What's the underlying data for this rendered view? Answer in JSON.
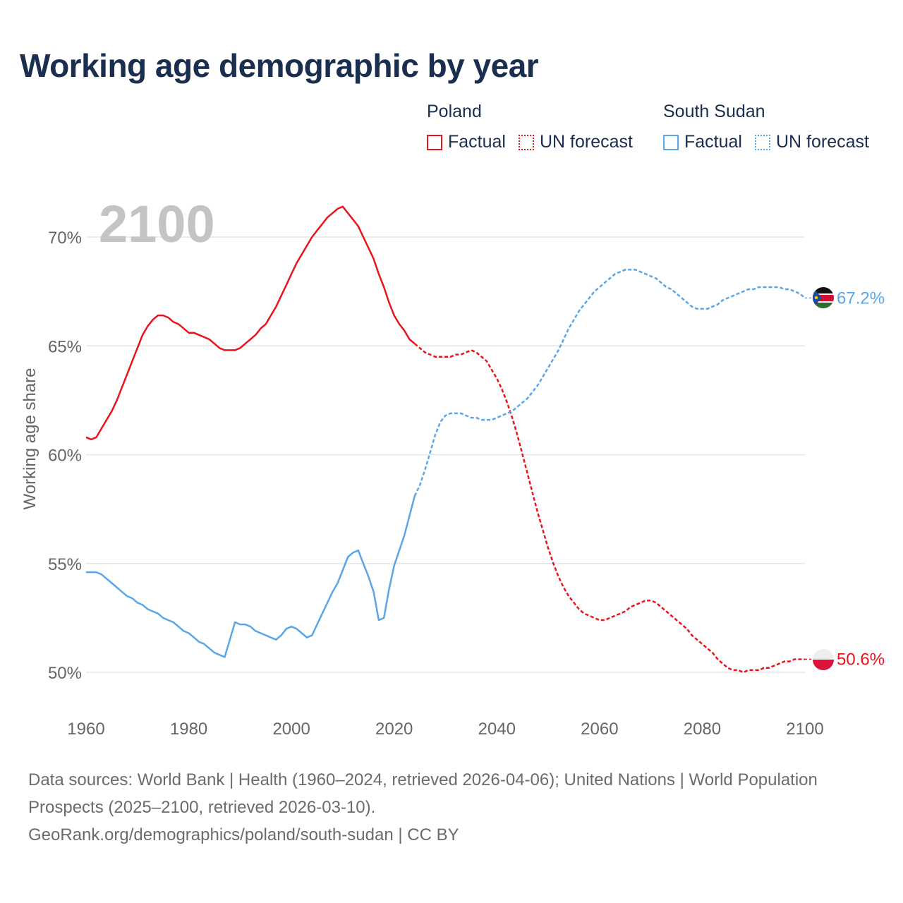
{
  "title": "Working age demographic by year",
  "legend": {
    "poland": {
      "country": "Poland",
      "factual": "Factual",
      "forecast": "UN forecast"
    },
    "south_sudan": {
      "country": "South Sudan",
      "factual": "Factual",
      "forecast": "UN forecast"
    }
  },
  "colors": {
    "poland": "#e8141c",
    "south_sudan": "#5aa6e6",
    "grid": "#e6e6e6",
    "axis_text": "#666666",
    "year_watermark": "#c4c4c4"
  },
  "footer": {
    "sources": "Data sources: World Bank | Health (1960–2024, retrieved 2026-04-06); United Nations | World Population Prospects (2025–2100, retrieved 2026-03-10).",
    "credit": "GeoRank.org/demographics/poland/south-sudan | CC BY"
  },
  "chart_data": {
    "type": "line",
    "title": "Working age demographic by year",
    "year_label": "2100",
    "ylabel": "Working age share",
    "xlabel": "",
    "xlim": [
      1960,
      2100
    ],
    "ylim": [
      48.5,
      72.5
    ],
    "x_ticks": [
      1960,
      1980,
      2000,
      2020,
      2040,
      2060,
      2080,
      2100
    ],
    "x_tick_labels": [
      "1960",
      "1980",
      "2000",
      "2020",
      "2040",
      "2060",
      "2080",
      "2100"
    ],
    "y_ticks": [
      50,
      55,
      60,
      65,
      70
    ],
    "y_tick_labels": [
      "50%",
      "55%",
      "60%",
      "65%",
      "70%"
    ],
    "series": [
      {
        "name": "Poland",
        "end_label": "50.6%",
        "factual": [
          [
            1960,
            60.8
          ],
          [
            1961,
            60.7
          ],
          [
            1962,
            60.8
          ],
          [
            1963,
            61.2
          ],
          [
            1964,
            61.6
          ],
          [
            1965,
            62.0
          ],
          [
            1966,
            62.5
          ],
          [
            1967,
            63.1
          ],
          [
            1968,
            63.7
          ],
          [
            1969,
            64.3
          ],
          [
            1970,
            64.9
          ],
          [
            1971,
            65.5
          ],
          [
            1972,
            65.9
          ],
          [
            1973,
            66.2
          ],
          [
            1974,
            66.4
          ],
          [
            1975,
            66.4
          ],
          [
            1976,
            66.3
          ],
          [
            1977,
            66.1
          ],
          [
            1978,
            66.0
          ],
          [
            1979,
            65.8
          ],
          [
            1980,
            65.6
          ],
          [
            1981,
            65.6
          ],
          [
            1982,
            65.5
          ],
          [
            1983,
            65.4
          ],
          [
            1984,
            65.3
          ],
          [
            1985,
            65.1
          ],
          [
            1986,
            64.9
          ],
          [
            1987,
            64.8
          ],
          [
            1988,
            64.8
          ],
          [
            1989,
            64.8
          ],
          [
            1990,
            64.9
          ],
          [
            1991,
            65.1
          ],
          [
            1992,
            65.3
          ],
          [
            1993,
            65.5
          ],
          [
            1994,
            65.8
          ],
          [
            1995,
            66.0
          ],
          [
            1996,
            66.4
          ],
          [
            1997,
            66.8
          ],
          [
            1998,
            67.3
          ],
          [
            1999,
            67.8
          ],
          [
            2000,
            68.3
          ],
          [
            2001,
            68.8
          ],
          [
            2002,
            69.2
          ],
          [
            2003,
            69.6
          ],
          [
            2004,
            70.0
          ],
          [
            2005,
            70.3
          ],
          [
            2006,
            70.6
          ],
          [
            2007,
            70.9
          ],
          [
            2008,
            71.1
          ],
          [
            2009,
            71.3
          ],
          [
            2010,
            71.4
          ],
          [
            2011,
            71.1
          ],
          [
            2012,
            70.8
          ],
          [
            2013,
            70.5
          ],
          [
            2014,
            70.0
          ],
          [
            2015,
            69.5
          ],
          [
            2016,
            69.0
          ],
          [
            2017,
            68.3
          ],
          [
            2018,
            67.7
          ],
          [
            2019,
            67.0
          ],
          [
            2020,
            66.4
          ],
          [
            2021,
            66.0
          ],
          [
            2022,
            65.7
          ],
          [
            2023,
            65.3
          ],
          [
            2024,
            65.1
          ]
        ],
        "forecast": [
          [
            2024,
            65.1
          ],
          [
            2025,
            64.9
          ],
          [
            2026,
            64.7
          ],
          [
            2027,
            64.6
          ],
          [
            2028,
            64.5
          ],
          [
            2029,
            64.5
          ],
          [
            2030,
            64.5
          ],
          [
            2031,
            64.5
          ],
          [
            2032,
            64.6
          ],
          [
            2033,
            64.6
          ],
          [
            2034,
            64.7
          ],
          [
            2035,
            64.8
          ],
          [
            2036,
            64.7
          ],
          [
            2037,
            64.5
          ],
          [
            2038,
            64.3
          ],
          [
            2039,
            63.9
          ],
          [
            2040,
            63.5
          ],
          [
            2041,
            63.0
          ],
          [
            2042,
            62.4
          ],
          [
            2043,
            61.7
          ],
          [
            2044,
            60.9
          ],
          [
            2045,
            60.0
          ],
          [
            2046,
            59.1
          ],
          [
            2047,
            58.2
          ],
          [
            2048,
            57.3
          ],
          [
            2049,
            56.5
          ],
          [
            2050,
            55.7
          ],
          [
            2051,
            55.0
          ],
          [
            2052,
            54.4
          ],
          [
            2053,
            53.9
          ],
          [
            2054,
            53.5
          ],
          [
            2055,
            53.2
          ],
          [
            2056,
            52.9
          ],
          [
            2057,
            52.7
          ],
          [
            2058,
            52.6
          ],
          [
            2059,
            52.5
          ],
          [
            2060,
            52.4
          ],
          [
            2061,
            52.4
          ],
          [
            2062,
            52.5
          ],
          [
            2063,
            52.6
          ],
          [
            2064,
            52.7
          ],
          [
            2065,
            52.8
          ],
          [
            2066,
            53.0
          ],
          [
            2067,
            53.1
          ],
          [
            2068,
            53.2
          ],
          [
            2069,
            53.3
          ],
          [
            2070,
            53.3
          ],
          [
            2071,
            53.2
          ],
          [
            2072,
            53.0
          ],
          [
            2073,
            52.8
          ],
          [
            2074,
            52.6
          ],
          [
            2075,
            52.4
          ],
          [
            2076,
            52.2
          ],
          [
            2077,
            52.0
          ],
          [
            2078,
            51.7
          ],
          [
            2079,
            51.5
          ],
          [
            2080,
            51.3
          ],
          [
            2081,
            51.1
          ],
          [
            2082,
            50.9
          ],
          [
            2083,
            50.6
          ],
          [
            2084,
            50.4
          ],
          [
            2085,
            50.2
          ],
          [
            2086,
            50.1
          ],
          [
            2087,
            50.1
          ],
          [
            2088,
            50.0
          ],
          [
            2089,
            50.1
          ],
          [
            2090,
            50.1
          ],
          [
            2091,
            50.1
          ],
          [
            2092,
            50.2
          ],
          [
            2093,
            50.2
          ],
          [
            2094,
            50.3
          ],
          [
            2095,
            50.4
          ],
          [
            2096,
            50.5
          ],
          [
            2097,
            50.5
          ],
          [
            2098,
            50.6
          ],
          [
            2099,
            50.6
          ],
          [
            2100,
            50.6
          ]
        ]
      },
      {
        "name": "South Sudan",
        "end_label": "67.2%",
        "factual": [
          [
            1960,
            54.6
          ],
          [
            1961,
            54.6
          ],
          [
            1962,
            54.6
          ],
          [
            1963,
            54.5
          ],
          [
            1964,
            54.3
          ],
          [
            1965,
            54.1
          ],
          [
            1966,
            53.9
          ],
          [
            1967,
            53.7
          ],
          [
            1968,
            53.5
          ],
          [
            1969,
            53.4
          ],
          [
            1970,
            53.2
          ],
          [
            1971,
            53.1
          ],
          [
            1972,
            52.9
          ],
          [
            1973,
            52.8
          ],
          [
            1974,
            52.7
          ],
          [
            1975,
            52.5
          ],
          [
            1976,
            52.4
          ],
          [
            1977,
            52.3
          ],
          [
            1978,
            52.1
          ],
          [
            1979,
            51.9
          ],
          [
            1980,
            51.8
          ],
          [
            1981,
            51.6
          ],
          [
            1982,
            51.4
          ],
          [
            1983,
            51.3
          ],
          [
            1984,
            51.1
          ],
          [
            1985,
            50.9
          ],
          [
            1986,
            50.8
          ],
          [
            1987,
            50.7
          ],
          [
            1988,
            51.5
          ],
          [
            1989,
            52.3
          ],
          [
            1990,
            52.2
          ],
          [
            1991,
            52.2
          ],
          [
            1992,
            52.1
          ],
          [
            1993,
            51.9
          ],
          [
            1994,
            51.8
          ],
          [
            1995,
            51.7
          ],
          [
            1996,
            51.6
          ],
          [
            1997,
            51.5
          ],
          [
            1998,
            51.7
          ],
          [
            1999,
            52.0
          ],
          [
            2000,
            52.1
          ],
          [
            2001,
            52.0
          ],
          [
            2002,
            51.8
          ],
          [
            2003,
            51.6
          ],
          [
            2004,
            51.7
          ],
          [
            2005,
            52.2
          ],
          [
            2006,
            52.7
          ],
          [
            2007,
            53.2
          ],
          [
            2008,
            53.7
          ],
          [
            2009,
            54.1
          ],
          [
            2010,
            54.7
          ],
          [
            2011,
            55.3
          ],
          [
            2012,
            55.5
          ],
          [
            2013,
            55.6
          ],
          [
            2014,
            55.0
          ],
          [
            2015,
            54.4
          ],
          [
            2016,
            53.7
          ],
          [
            2017,
            52.4
          ],
          [
            2018,
            52.5
          ],
          [
            2019,
            53.8
          ],
          [
            2020,
            54.9
          ],
          [
            2021,
            55.6
          ],
          [
            2022,
            56.3
          ],
          [
            2023,
            57.2
          ],
          [
            2024,
            58.1
          ]
        ],
        "forecast": [
          [
            2024,
            58.1
          ],
          [
            2025,
            58.6
          ],
          [
            2026,
            59.3
          ],
          [
            2027,
            60.1
          ],
          [
            2028,
            60.9
          ],
          [
            2029,
            61.5
          ],
          [
            2030,
            61.8
          ],
          [
            2031,
            61.9
          ],
          [
            2032,
            61.9
          ],
          [
            2033,
            61.9
          ],
          [
            2034,
            61.8
          ],
          [
            2035,
            61.7
          ],
          [
            2036,
            61.7
          ],
          [
            2037,
            61.6
          ],
          [
            2038,
            61.6
          ],
          [
            2039,
            61.6
          ],
          [
            2040,
            61.7
          ],
          [
            2041,
            61.8
          ],
          [
            2042,
            61.9
          ],
          [
            2043,
            62.0
          ],
          [
            2044,
            62.2
          ],
          [
            2045,
            62.4
          ],
          [
            2046,
            62.6
          ],
          [
            2047,
            62.9
          ],
          [
            2048,
            63.2
          ],
          [
            2049,
            63.6
          ],
          [
            2050,
            64.0
          ],
          [
            2051,
            64.4
          ],
          [
            2052,
            64.8
          ],
          [
            2053,
            65.3
          ],
          [
            2054,
            65.8
          ],
          [
            2055,
            66.2
          ],
          [
            2056,
            66.6
          ],
          [
            2057,
            66.9
          ],
          [
            2058,
            67.2
          ],
          [
            2059,
            67.5
          ],
          [
            2060,
            67.7
          ],
          [
            2061,
            67.9
          ],
          [
            2062,
            68.1
          ],
          [
            2063,
            68.3
          ],
          [
            2064,
            68.4
          ],
          [
            2065,
            68.5
          ],
          [
            2066,
            68.5
          ],
          [
            2067,
            68.5
          ],
          [
            2068,
            68.4
          ],
          [
            2069,
            68.3
          ],
          [
            2070,
            68.2
          ],
          [
            2071,
            68.1
          ],
          [
            2072,
            67.9
          ],
          [
            2073,
            67.7
          ],
          [
            2074,
            67.6
          ],
          [
            2075,
            67.4
          ],
          [
            2076,
            67.2
          ],
          [
            2077,
            67.0
          ],
          [
            2078,
            66.8
          ],
          [
            2079,
            66.7
          ],
          [
            2080,
            66.7
          ],
          [
            2081,
            66.7
          ],
          [
            2082,
            66.8
          ],
          [
            2083,
            66.9
          ],
          [
            2084,
            67.1
          ],
          [
            2085,
            67.2
          ],
          [
            2086,
            67.3
          ],
          [
            2087,
            67.4
          ],
          [
            2088,
            67.5
          ],
          [
            2089,
            67.6
          ],
          [
            2090,
            67.6
          ],
          [
            2091,
            67.7
          ],
          [
            2092,
            67.7
          ],
          [
            2093,
            67.7
          ],
          [
            2094,
            67.7
          ],
          [
            2095,
            67.7
          ],
          [
            2096,
            67.6
          ],
          [
            2097,
            67.6
          ],
          [
            2098,
            67.5
          ],
          [
            2099,
            67.4
          ],
          [
            2100,
            67.2
          ]
        ]
      }
    ]
  }
}
